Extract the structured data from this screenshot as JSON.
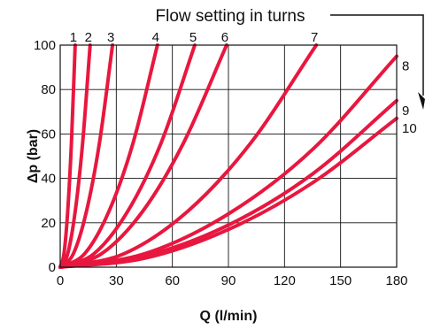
{
  "chart_data": {
    "type": "line",
    "title": "",
    "annotation": "Flow setting in turns",
    "xlabel": "Q (l/min)",
    "ylabel": "Δp (bar)",
    "xlim": [
      0,
      180
    ],
    "ylim": [
      0,
      100
    ],
    "xticks": [
      "0",
      "30",
      "60",
      "90",
      "120",
      "150",
      "180"
    ],
    "yticks": [
      "0",
      "20",
      "40",
      "60",
      "80",
      "100"
    ],
    "grid": true,
    "line_color": "#e8173f",
    "series": [
      {
        "name": "1",
        "x": [
          0,
          2,
          4,
          6,
          8
        ],
        "y": [
          0,
          6,
          25,
          56,
          100
        ]
      },
      {
        "name": "2",
        "x": [
          0,
          4,
          8,
          12,
          16
        ],
        "y": [
          0,
          6,
          25,
          56,
          100
        ]
      },
      {
        "name": "3",
        "x": [
          0,
          7,
          14,
          21,
          28
        ],
        "y": [
          0,
          6,
          25,
          56,
          100
        ]
      },
      {
        "name": "4",
        "x": [
          0,
          13,
          26,
          39,
          52
        ],
        "y": [
          0,
          6,
          25,
          56,
          100
        ]
      },
      {
        "name": "5",
        "x": [
          0,
          18,
          36,
          54,
          72
        ],
        "y": [
          0,
          6,
          25,
          56,
          100
        ]
      },
      {
        "name": "6",
        "x": [
          0,
          22,
          44,
          66,
          89
        ],
        "y": [
          0,
          6,
          25,
          56,
          100
        ]
      },
      {
        "name": "7",
        "x": [
          0,
          34,
          68,
          102,
          137
        ],
        "y": [
          0,
          6,
          25,
          56,
          100
        ]
      },
      {
        "name": "8",
        "x": [
          0,
          45,
          90,
          135,
          180
        ],
        "y": [
          0,
          6,
          24,
          53,
          95
        ]
      },
      {
        "name": "9",
        "x": [
          0,
          45,
          90,
          135,
          180
        ],
        "y": [
          0,
          5,
          19,
          42,
          75
        ]
      },
      {
        "name": "10",
        "x": [
          0,
          45,
          90,
          135,
          180
        ],
        "y": [
          0,
          4,
          17,
          38,
          67
        ]
      }
    ]
  }
}
